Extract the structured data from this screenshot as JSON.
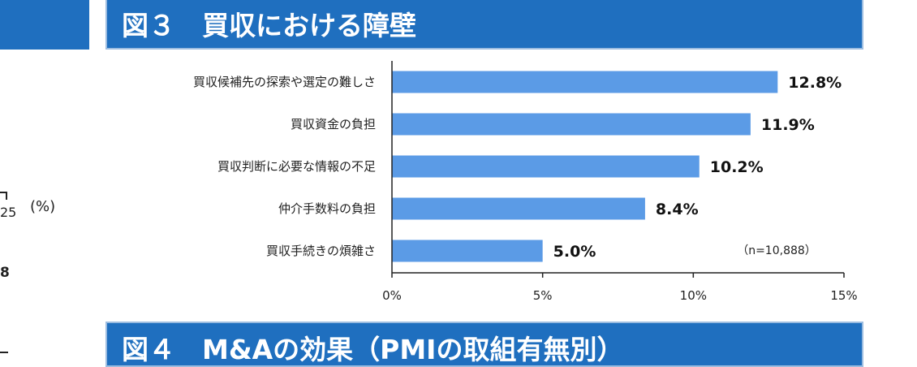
{
  "header": {
    "title": "図３　買収における障壁"
  },
  "next_header": {
    "title": "図４　M&Aの効果（PMIの取組有無別）"
  },
  "left_panel": {
    "axis_end_label": "25",
    "unit_label": "(%)",
    "value_fragment": "8"
  },
  "note": "（n=10,888）",
  "chart_data": {
    "type": "bar",
    "orientation": "horizontal",
    "title": "図３　買収における障壁",
    "categories": [
      "買収候補先の探索や選定の難しさ",
      "買収資金の負担",
      "買収判断に必要な情報の不足",
      "仲介手数料の負担",
      "買収手続きの煩雑さ"
    ],
    "values": [
      12.8,
      11.9,
      10.2,
      8.4,
      5.0
    ],
    "value_labels": [
      "12.8%",
      "11.9%",
      "10.2%",
      "8.4%",
      "5.0%"
    ],
    "x_ticks": [
      "0%",
      "5%",
      "10%",
      "15%"
    ],
    "xlim": [
      0,
      15
    ],
    "grid": false,
    "bar_color": "#5b9be6"
  }
}
